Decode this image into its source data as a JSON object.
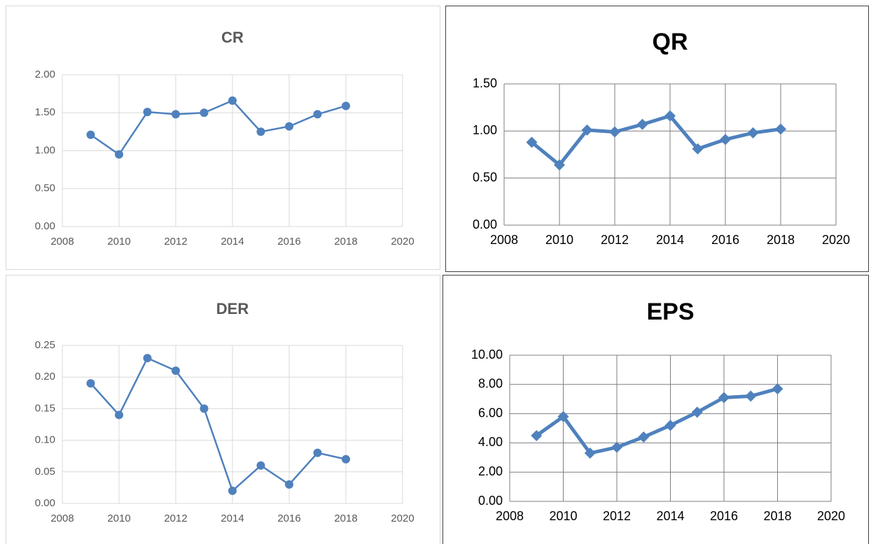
{
  "chart_data": [
    {
      "type": "line",
      "title": "CR",
      "marker": "circle",
      "color": "#4f81bd",
      "grid": true,
      "x": [
        2009,
        2010,
        2011,
        2012,
        2013,
        2014,
        2015,
        2016,
        2017,
        2018
      ],
      "values": [
        1.21,
        0.95,
        1.51,
        1.48,
        1.5,
        1.66,
        1.25,
        1.32,
        1.48,
        1.59
      ],
      "xlim": [
        2008,
        2020
      ],
      "xticks": [
        2008,
        2010,
        2012,
        2014,
        2016,
        2018,
        2020
      ],
      "ylim": [
        0,
        2
      ],
      "yticks": [
        {
          "value": 0,
          "label": "0.00"
        },
        {
          "value": 0.5,
          "label": "0.50"
        },
        {
          "value": 1,
          "label": "1.00"
        },
        {
          "value": 1.5,
          "label": "1.50"
        },
        {
          "value": 2,
          "label": "2.00"
        }
      ]
    },
    {
      "type": "line",
      "title": "QR",
      "marker": "diamond",
      "color": "#4f81bd",
      "grid": true,
      "x": [
        2009,
        2010,
        2011,
        2012,
        2013,
        2014,
        2015,
        2016,
        2017,
        2018
      ],
      "values": [
        0.88,
        0.64,
        1.01,
        0.99,
        1.07,
        1.16,
        0.81,
        0.91,
        0.98,
        1.02
      ],
      "xlim": [
        2008,
        2020
      ],
      "xticks": [
        2008,
        2010,
        2012,
        2014,
        2016,
        2018,
        2020
      ],
      "ylim": [
        0,
        1.5
      ],
      "yticks": [
        {
          "value": 0,
          "label": "0.00"
        },
        {
          "value": 0.5,
          "label": "0.50"
        },
        {
          "value": 1,
          "label": "1.00"
        },
        {
          "value": 1.5,
          "label": "1.50"
        }
      ]
    },
    {
      "type": "line",
      "title": "DER",
      "marker": "circle",
      "color": "#4f81bd",
      "grid": true,
      "x": [
        2009,
        2010,
        2011,
        2012,
        2013,
        2014,
        2015,
        2016,
        2017,
        2018
      ],
      "values": [
        0.19,
        0.14,
        0.23,
        0.21,
        0.15,
        0.02,
        0.06,
        0.03,
        0.08,
        0.07
      ],
      "xlim": [
        2008,
        2020
      ],
      "xticks": [
        2008,
        2010,
        2012,
        2014,
        2016,
        2018,
        2020
      ],
      "ylim": [
        0,
        0.25
      ],
      "yticks": [
        {
          "value": 0,
          "label": "0.00"
        },
        {
          "value": 0.05,
          "label": "0.05"
        },
        {
          "value": 0.1,
          "label": "0.10"
        },
        {
          "value": 0.15,
          "label": "0.15"
        },
        {
          "value": 0.2,
          "label": "0.20"
        },
        {
          "value": 0.25,
          "label": "0.25"
        }
      ]
    },
    {
      "type": "line",
      "title": "EPS",
      "marker": "diamond",
      "color": "#4f81bd",
      "grid": true,
      "x": [
        2009,
        2010,
        2011,
        2012,
        2013,
        2014,
        2015,
        2016,
        2017,
        2018
      ],
      "values": [
        4.5,
        5.8,
        3.3,
        3.7,
        4.4,
        5.2,
        6.1,
        7.1,
        7.2,
        7.7
      ],
      "xlim": [
        2008,
        2020
      ],
      "xticks": [
        2008,
        2010,
        2012,
        2014,
        2016,
        2018,
        2020
      ],
      "ylim": [
        0,
        10
      ],
      "yticks": [
        {
          "value": 0,
          "label": "0.00"
        },
        {
          "value": 2,
          "label": "2.00"
        },
        {
          "value": 4,
          "label": "4.00"
        },
        {
          "value": 6,
          "label": "6.00"
        },
        {
          "value": 8,
          "label": "8.00"
        },
        {
          "value": 10,
          "label": "10.00"
        }
      ]
    }
  ]
}
